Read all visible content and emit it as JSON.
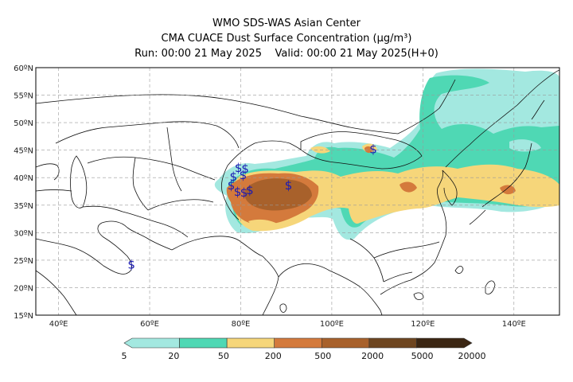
{
  "header": {
    "title_line1": "WMO SDS-WAS Asian Center",
    "title_line2": "CMA CUACE Dust Surface Concentration (μg/m³)",
    "run": "Run: 00:00 21 May 2025",
    "valid": "Valid: 00:00 21 May 2025(H+0)"
  },
  "map": {
    "lat_labels": [
      "60ºN",
      "55ºN",
      "50ºN",
      "45ºN",
      "40ºN",
      "35ºN",
      "30ºN",
      "25ºN",
      "20ºN",
      "15ºN"
    ],
    "lon_labels": [
      "40ºE",
      "60ºE",
      "80ºE",
      "100ºE",
      "120ºE",
      "140ºE"
    ],
    "lat_range": [
      15,
      60
    ],
    "lon_range": [
      35,
      150
    ],
    "gridlines": true,
    "storm_symbol": "$",
    "storm_symbol_color": "#1a1ab4",
    "storm_markers": [
      {
        "lon": 79.5,
        "lat": 41.8
      },
      {
        "lon": 81.0,
        "lat": 41.6
      },
      {
        "lon": 78.4,
        "lat": 40.2
      },
      {
        "lon": 80.5,
        "lat": 40.5
      },
      {
        "lon": 77.9,
        "lat": 38.6
      },
      {
        "lon": 79.3,
        "lat": 37.4
      },
      {
        "lon": 80.7,
        "lat": 37.3
      },
      {
        "lon": 82.0,
        "lat": 37.7
      },
      {
        "lon": 90.5,
        "lat": 38.6
      },
      {
        "lon": 109.1,
        "lat": 45.2
      },
      {
        "lon": 56.0,
        "lat": 24.2
      }
    ]
  },
  "colorbar": {
    "ticks": [
      "5",
      "20",
      "50",
      "200",
      "500",
      "2000",
      "5000",
      "20000"
    ],
    "colors": [
      "#a3e8e0",
      "#4fd8b4",
      "#f6d67a",
      "#d47a3c",
      "#a8612b",
      "#6e4620",
      "#3b2613"
    ],
    "extend": "both"
  }
}
